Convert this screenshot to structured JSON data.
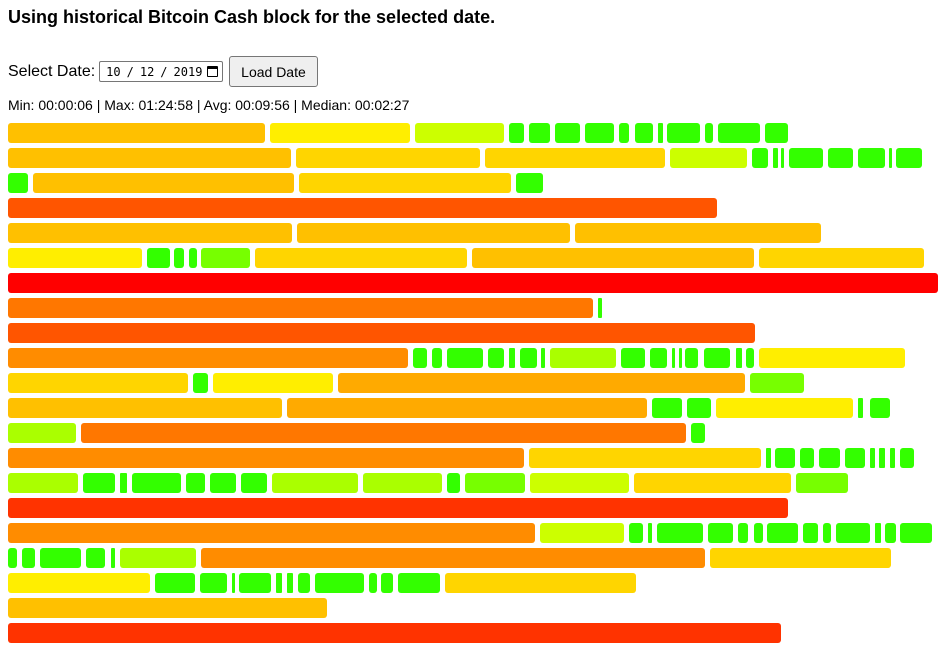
{
  "page": {
    "title": "Using historical Bitcoin Cash block for the selected date."
  },
  "controls": {
    "date_label": "Select Date:",
    "date_month": "10",
    "date_day": "12",
    "date_year": "2019",
    "date_value": "2019-10-12",
    "load_button": "Load Date"
  },
  "stats": {
    "text": "Min: 00:00:06 | Max: 01:24:58 | Avg: 00:09:56 | Median: 00:02:27",
    "min": "00:00:06",
    "max": "01:24:58",
    "avg": "00:09:56",
    "median": "00:02:27"
  },
  "block_colors": {
    "red": "#ff0000",
    "red_orange": "#ff3300",
    "dark_orange": "#ff5500",
    "orange": "#ff7700",
    "light_orange": "#ff8c00",
    "amber": "#ffaa00",
    "gold": "#ffc000",
    "yellow_gold": "#ffd500",
    "yellow": "#ffee00",
    "yellow_green": "#ccff00",
    "lime": "#aaff00",
    "light_green": "#77ff00",
    "green": "#33ff00"
  }
}
